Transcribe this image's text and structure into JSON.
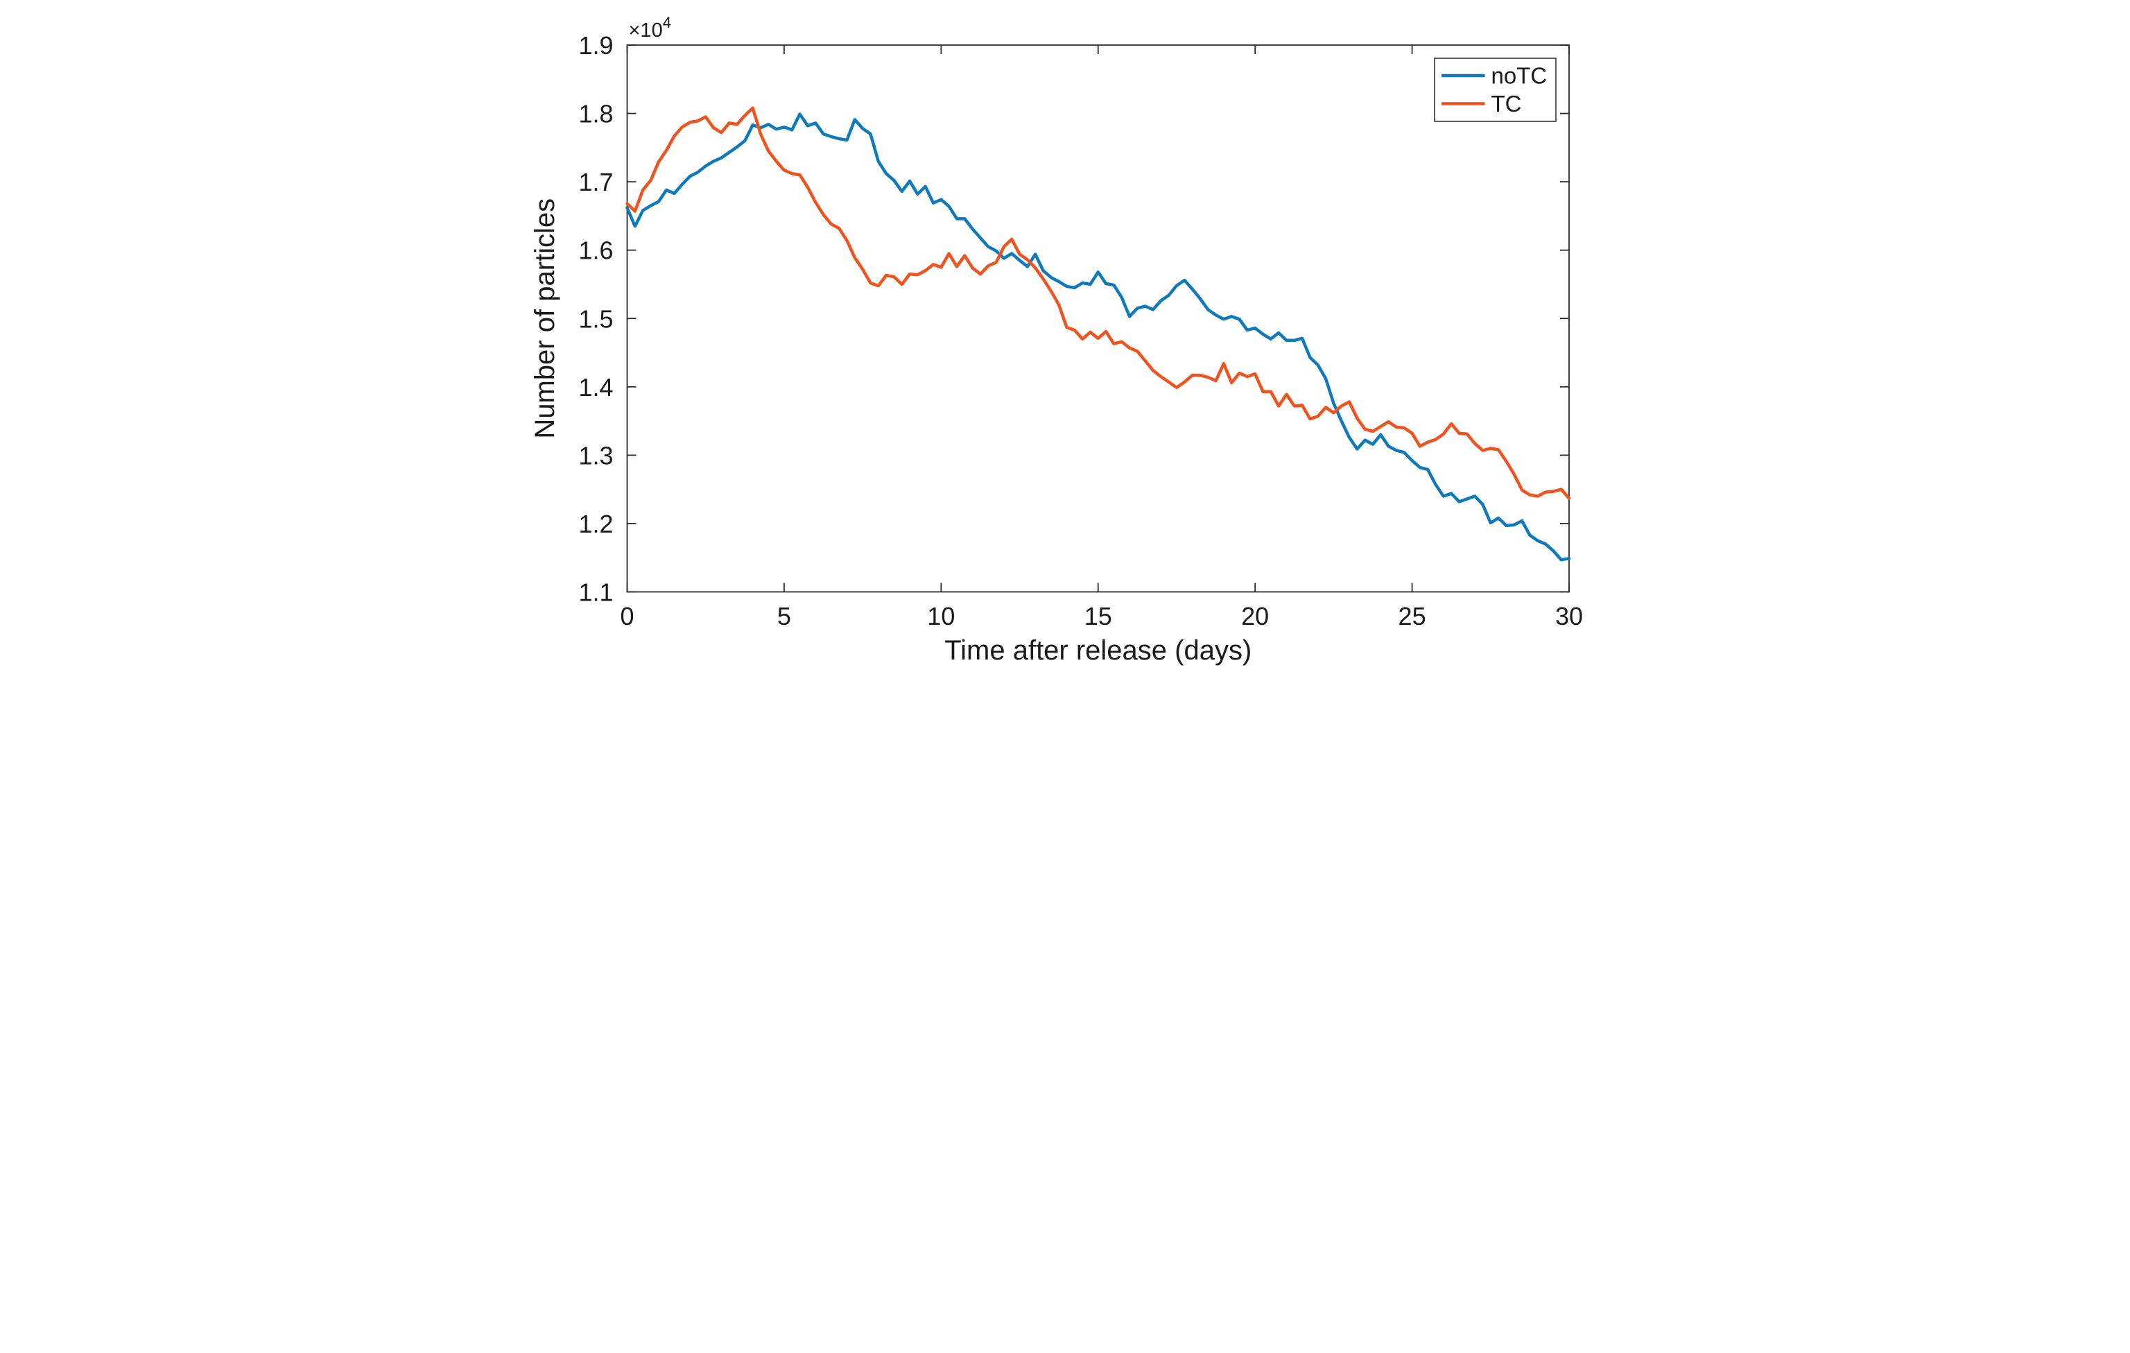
{
  "figure": {
    "background": "#ffffff",
    "axis_color": "#262626",
    "text_color": "#1a1a1a"
  },
  "chart_data": {
    "type": "line",
    "title": "",
    "xlabel": "Time after release (days)",
    "ylabel": "Number of particles",
    "y_axis_exponent": {
      "base_text": "×10",
      "exponent": "4"
    },
    "xlim": [
      0,
      30
    ],
    "ylim": [
      11000,
      19000
    ],
    "xticks": [
      0,
      5,
      10,
      15,
      20,
      25,
      30
    ],
    "xtick_labels": [
      "0",
      "5",
      "10",
      "15",
      "20",
      "25",
      "30"
    ],
    "yticks": [
      11000,
      12000,
      13000,
      14000,
      15000,
      16000,
      17000,
      18000,
      19000
    ],
    "ytick_labels": [
      "1.1",
      "1.2",
      "1.3",
      "1.4",
      "1.5",
      "1.6",
      "1.7",
      "1.8",
      "1.9"
    ],
    "grid": false,
    "legend": {
      "position": "northeast",
      "entries": [
        "noTC",
        "TC"
      ]
    },
    "x_start": 0,
    "x_step": 0.25,
    "x_unit": "days",
    "series": [
      {
        "name": "noTC",
        "color": "#0e7abd",
        "values": [
          16620,
          16350,
          16580,
          16650,
          16710,
          16880,
          16830,
          16960,
          17080,
          17140,
          17230,
          17300,
          17350,
          17430,
          17510,
          17600,
          17830,
          17790,
          17840,
          17770,
          17800,
          17760,
          17990,
          17820,
          17860,
          17700,
          17660,
          17630,
          17610,
          17910,
          17780,
          17700,
          17300,
          17120,
          17020,
          16860,
          17010,
          16820,
          16930,
          16690,
          16740,
          16640,
          16460,
          16460,
          16310,
          16180,
          16050,
          15990,
          15880,
          15950,
          15850,
          15760,
          15940,
          15700,
          15600,
          15540,
          15470,
          15450,
          15520,
          15500,
          15680,
          15510,
          15490,
          15310,
          15030,
          15150,
          15180,
          15130,
          15260,
          15340,
          15480,
          15560,
          15430,
          15290,
          15130,
          15050,
          14990,
          15030,
          14990,
          14830,
          14860,
          14770,
          14700,
          14790,
          14680,
          14680,
          14710,
          14430,
          14320,
          14120,
          13760,
          13500,
          13260,
          13090,
          13220,
          13160,
          13300,
          13130,
          13070,
          13040,
          12920,
          12820,
          12790,
          12570,
          12400,
          12440,
          12320,
          12360,
          12400,
          12280,
          12010,
          12080,
          11970,
          11980,
          12040,
          11830,
          11750,
          11700,
          11600,
          11470,
          11490
        ]
      },
      {
        "name": "TC",
        "color": "#f0531d",
        "values": [
          16680,
          16570,
          16880,
          17020,
          17290,
          17460,
          17670,
          17800,
          17870,
          17890,
          17950,
          17790,
          17720,
          17860,
          17840,
          17970,
          18080,
          17700,
          17450,
          17300,
          17170,
          17120,
          17100,
          16920,
          16700,
          16520,
          16380,
          16320,
          16140,
          15890,
          15720,
          15520,
          15480,
          15630,
          15610,
          15500,
          15650,
          15640,
          15700,
          15790,
          15750,
          15950,
          15760,
          15920,
          15740,
          15650,
          15770,
          15820,
          16050,
          16160,
          15940,
          15860,
          15740,
          15580,
          15400,
          15200,
          14870,
          14830,
          14700,
          14800,
          14710,
          14810,
          14630,
          14660,
          14570,
          14520,
          14380,
          14240,
          14150,
          14070,
          13990,
          14070,
          14170,
          14170,
          14140,
          14090,
          14340,
          14060,
          14200,
          14150,
          14190,
          13930,
          13930,
          13720,
          13890,
          13720,
          13730,
          13530,
          13570,
          13700,
          13620,
          13720,
          13780,
          13540,
          13380,
          13350,
          13420,
          13490,
          13410,
          13400,
          13320,
          13130,
          13190,
          13230,
          13310,
          13460,
          13320,
          13310,
          13170,
          13070,
          13100,
          13080,
          12910,
          12720,
          12490,
          12420,
          12400,
          12460,
          12470,
          12500,
          12370
        ]
      }
    ]
  }
}
